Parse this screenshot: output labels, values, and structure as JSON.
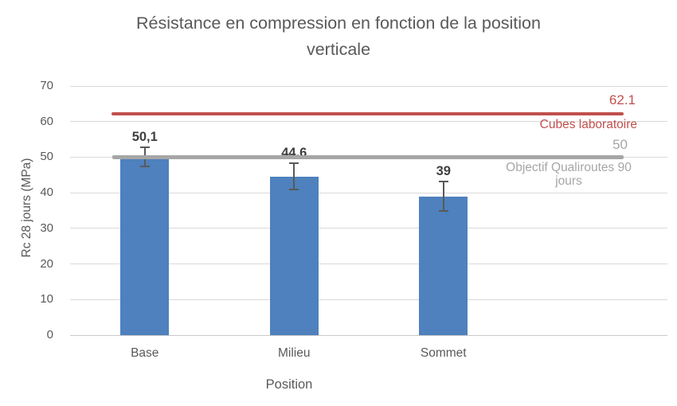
{
  "title_lines": [
    "Résistance en compression en fonction de la position",
    "verticale"
  ],
  "chart_data": {
    "type": "bar",
    "title": "Résistance en compression en fonction de la position verticale",
    "xlabel": "Position",
    "ylabel": "Rc 28 jours (MPa)",
    "categories": [
      "Base",
      "Milieu",
      "Sommet"
    ],
    "values": [
      50.1,
      44.6,
      39
    ],
    "value_labels": [
      "50,1",
      "44,6",
      "39"
    ],
    "error_bars_mpa": [
      2.8,
      4.0,
      4.3
    ],
    "ylim": [
      0,
      70
    ],
    "ytick_step": 10,
    "yticks": [
      0,
      10,
      20,
      30,
      40,
      50,
      60,
      70
    ],
    "grid": true,
    "legend_position": "none",
    "bar_color": "#4E81BD",
    "reference_lines": [
      {
        "name": "Cubes laboratoire",
        "name_lines": [
          "Cubes laboratoire"
        ],
        "value": 62.1,
        "value_label": "62.1",
        "color": "#C0504D"
      },
      {
        "name": "Objectif Qualiroutes 90 jours",
        "name_lines": [
          "Objectif Qualiroutes 90",
          "jours"
        ],
        "value": 50,
        "value_label": "50",
        "color": "#A6A6A6"
      }
    ]
  },
  "colors": {
    "title_text": "#595959",
    "axis_text": "#595959",
    "gridline": "#D9D9D9",
    "bar": "#4E81BD",
    "error_bar": "#595959",
    "data_label": "#3F3F3F",
    "ref_red": "#C0504D",
    "ref_gray": "#A6A6A6",
    "background": "#FFFFFF"
  }
}
